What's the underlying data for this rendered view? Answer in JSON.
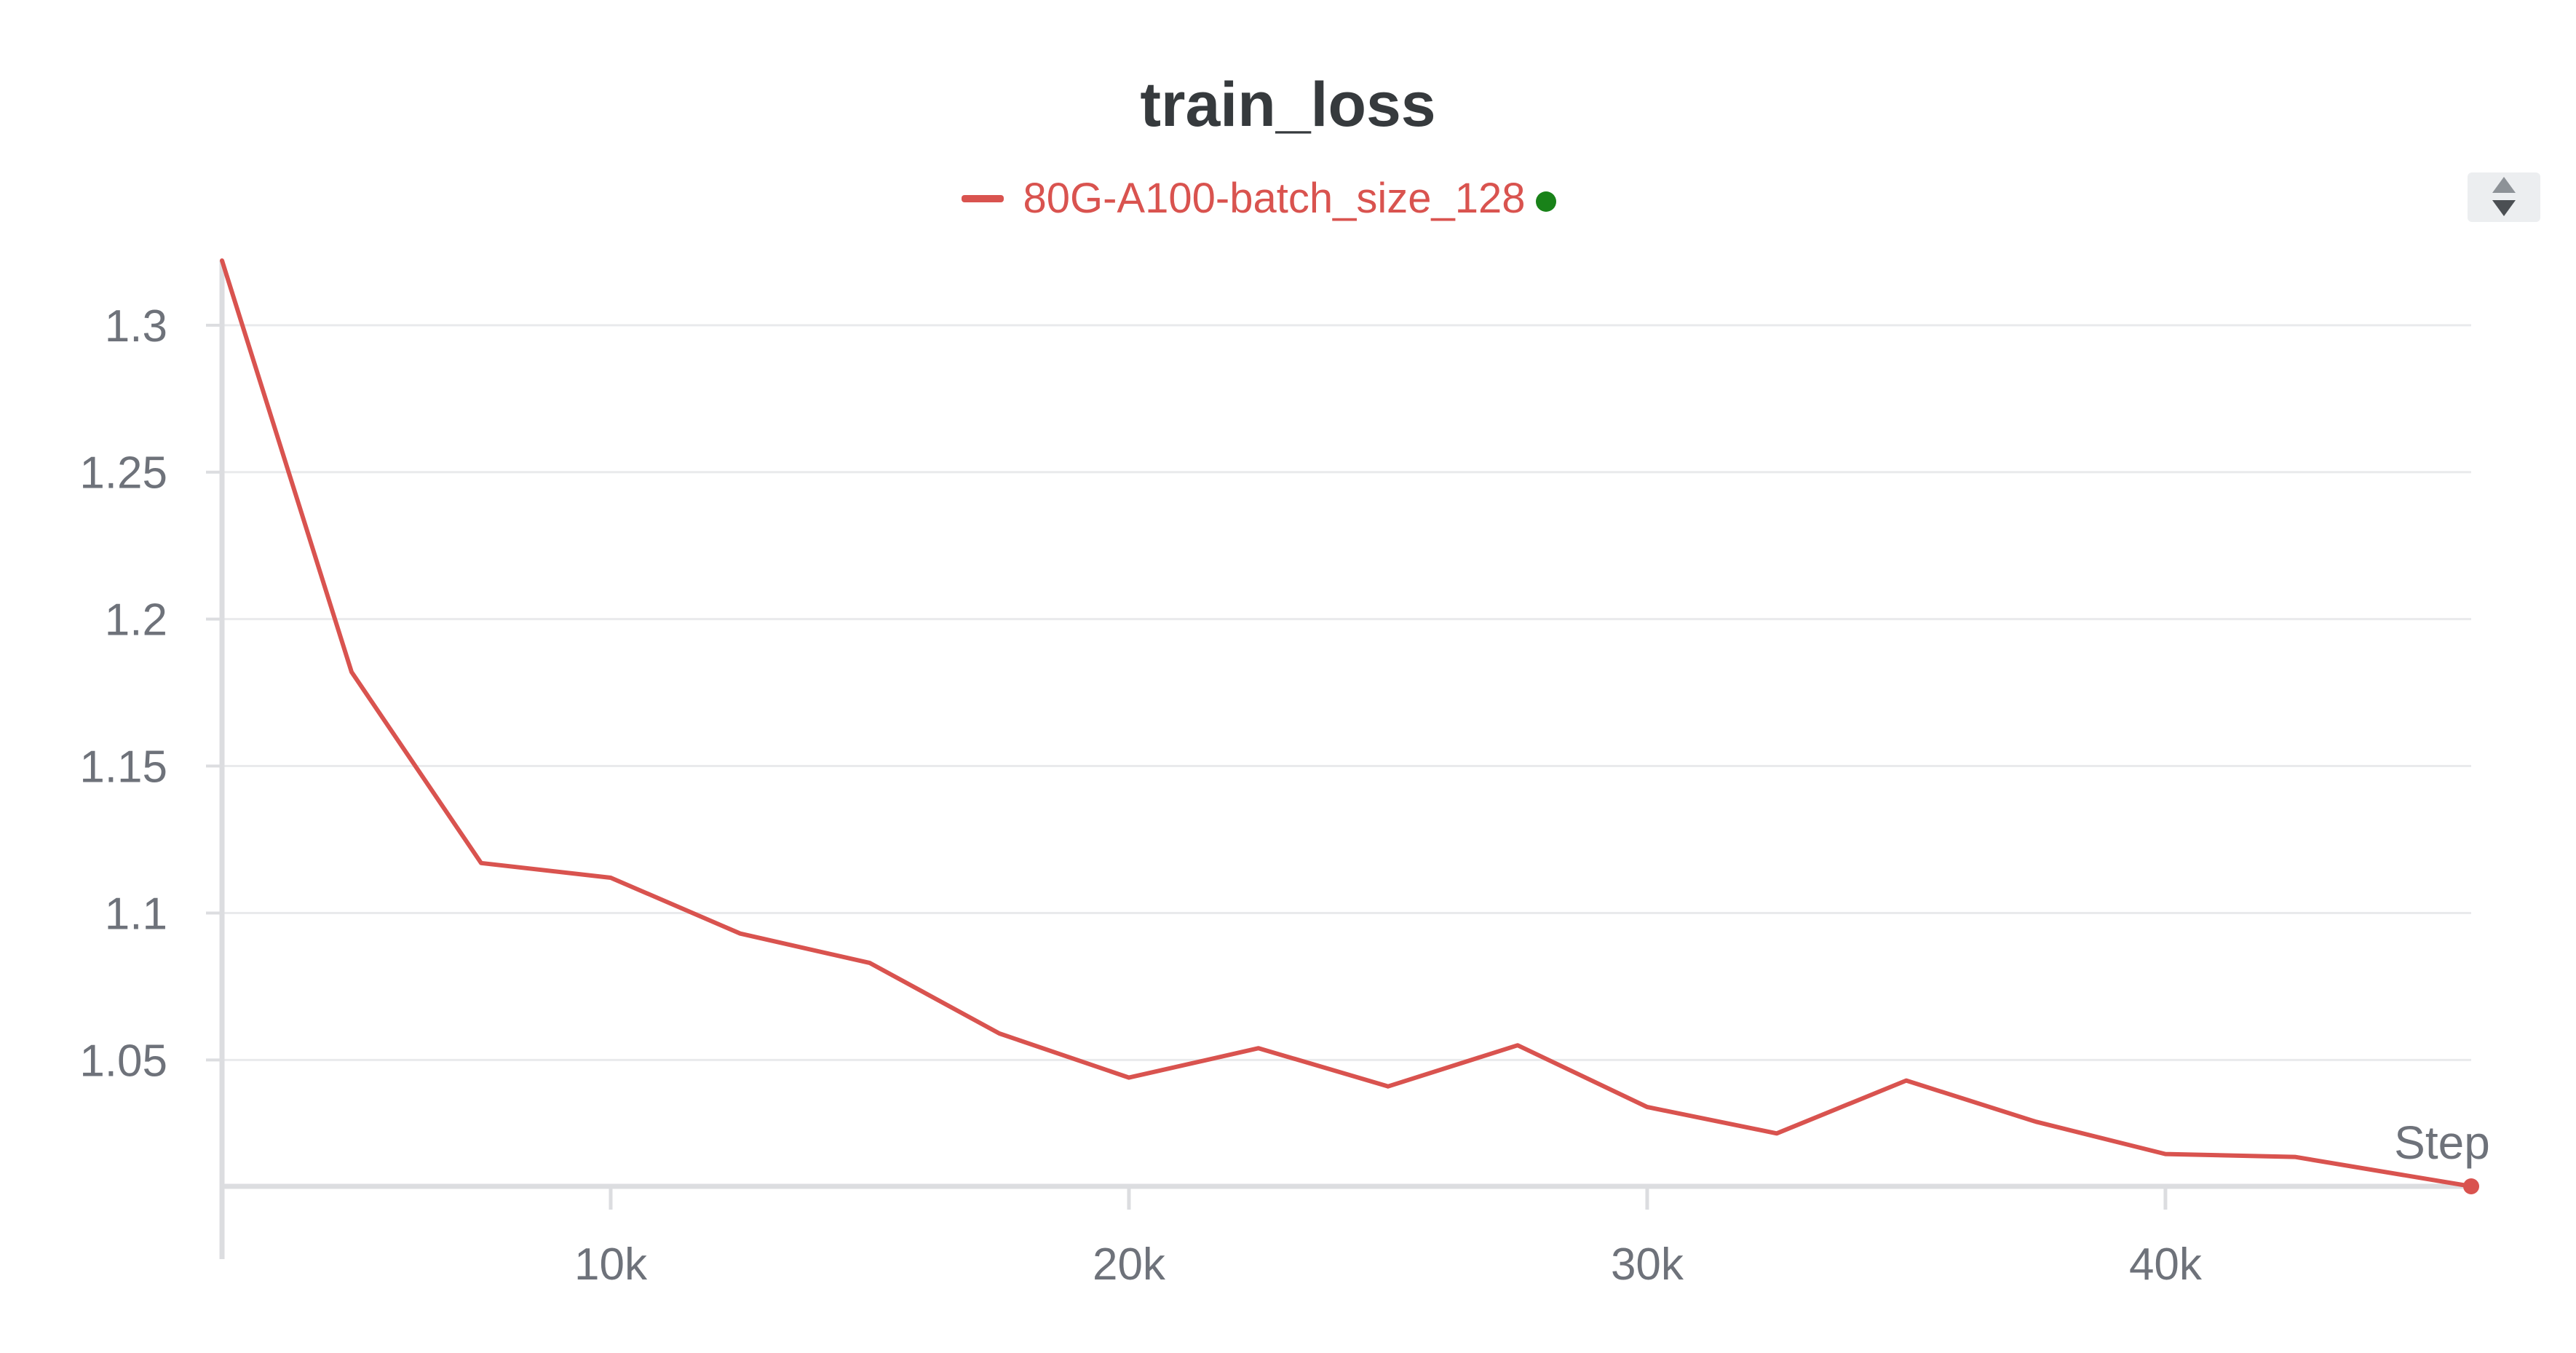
{
  "title": "train_loss",
  "legend": {
    "label": "80G-A100-batch_size_128",
    "color": "#d9534f",
    "status_color": "#198219"
  },
  "controls": {
    "scroll_icon": "sort-arrows-icon"
  },
  "chart_data": {
    "type": "line",
    "title": "train_loss",
    "xlabel": "Step",
    "ylabel": "",
    "xlim": [
      2500,
      45900
    ],
    "ylim": [
      1.007,
      1.322
    ],
    "x_ticks": [
      10000,
      20000,
      30000,
      40000
    ],
    "x_tick_labels": [
      "10k",
      "20k",
      "30k",
      "40k"
    ],
    "y_ticks": [
      1.05,
      1.1,
      1.15,
      1.2,
      1.25,
      1.3
    ],
    "y_tick_labels": [
      "1.05",
      "1.1",
      "1.15",
      "1.2",
      "1.25",
      "1.3"
    ],
    "grid": true,
    "legend_position": "top-center",
    "series": [
      {
        "name": "80G-A100-batch_size_128",
        "color": "#d9534f",
        "x": [
          2500,
          5000,
          7500,
          10000,
          12500,
          15000,
          17500,
          20000,
          22500,
          25000,
          27500,
          30000,
          32500,
          35000,
          37500,
          40000,
          42500,
          45900
        ],
        "y": [
          1.322,
          1.182,
          1.117,
          1.112,
          1.093,
          1.083,
          1.059,
          1.044,
          1.054,
          1.041,
          1.055,
          1.034,
          1.025,
          1.043,
          1.029,
          1.018,
          1.017,
          1.007
        ]
      }
    ]
  }
}
